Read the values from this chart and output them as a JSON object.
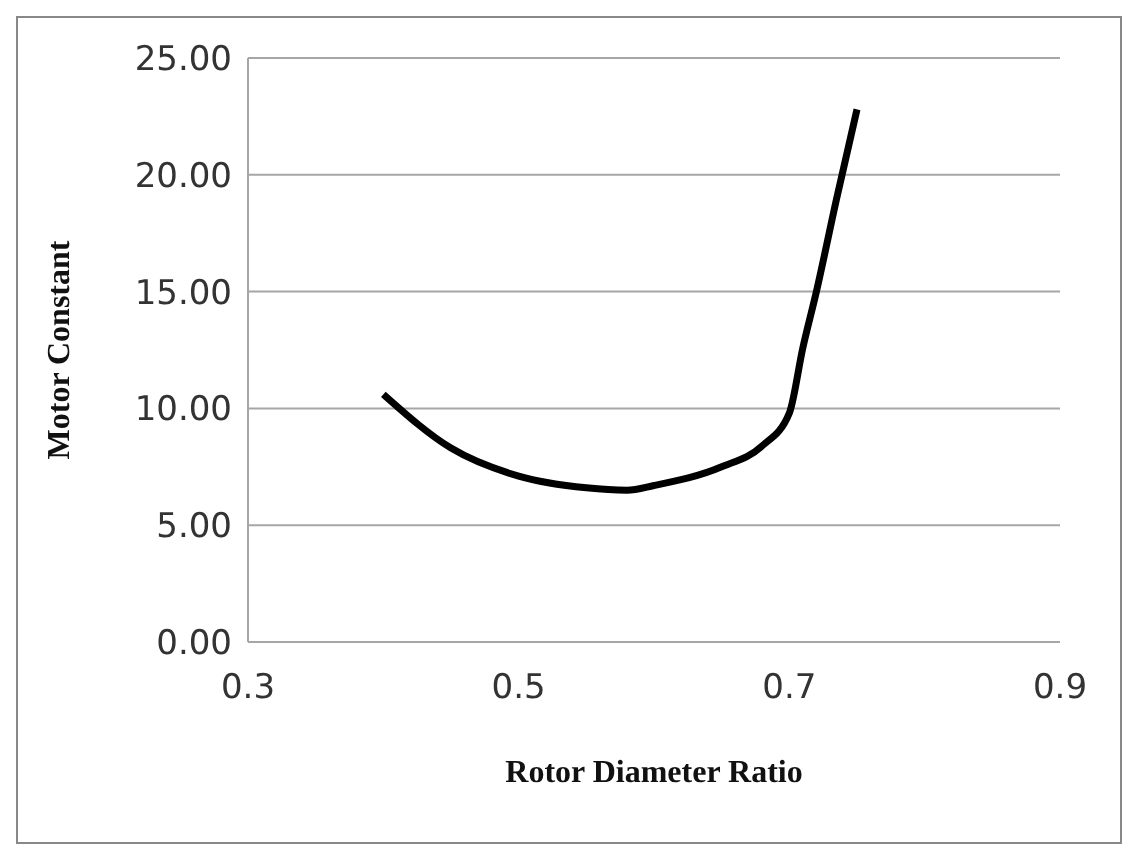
{
  "chart_data": {
    "type": "line",
    "xlabel": "Rotor Diameter Ratio",
    "ylabel": "Motor Constant",
    "x": [
      0.4,
      0.45,
      0.5,
      0.55,
      0.58,
      0.6,
      0.65,
      0.68,
      0.7,
      0.71,
      0.72,
      0.735,
      0.75
    ],
    "series": [
      {
        "color": "#000000",
        "values": [
          10.6,
          8.3,
          7.1,
          6.6,
          6.5,
          6.7,
          7.5,
          8.4,
          9.8,
          12.6,
          15.0,
          19.0,
          22.8
        ]
      }
    ],
    "xlim": [
      0.3,
      0.9
    ],
    "xticks": [
      {
        "value": 0.3,
        "label": "0.3"
      },
      {
        "value": 0.5,
        "label": "0.5"
      },
      {
        "value": 0.7,
        "label": "0.7"
      },
      {
        "value": 0.9,
        "label": "0.9"
      }
    ],
    "ylim": [
      0,
      25
    ],
    "yticks": [
      {
        "value": 0,
        "label": "0.00"
      },
      {
        "value": 5,
        "label": "5.00"
      },
      {
        "value": 10,
        "label": "10.00"
      },
      {
        "value": 15,
        "label": "15.00"
      },
      {
        "value": 20,
        "label": "20.00"
      },
      {
        "value": 25,
        "label": "25.00"
      }
    ],
    "grid": "y",
    "marker": "none",
    "line_style": "solid"
  }
}
